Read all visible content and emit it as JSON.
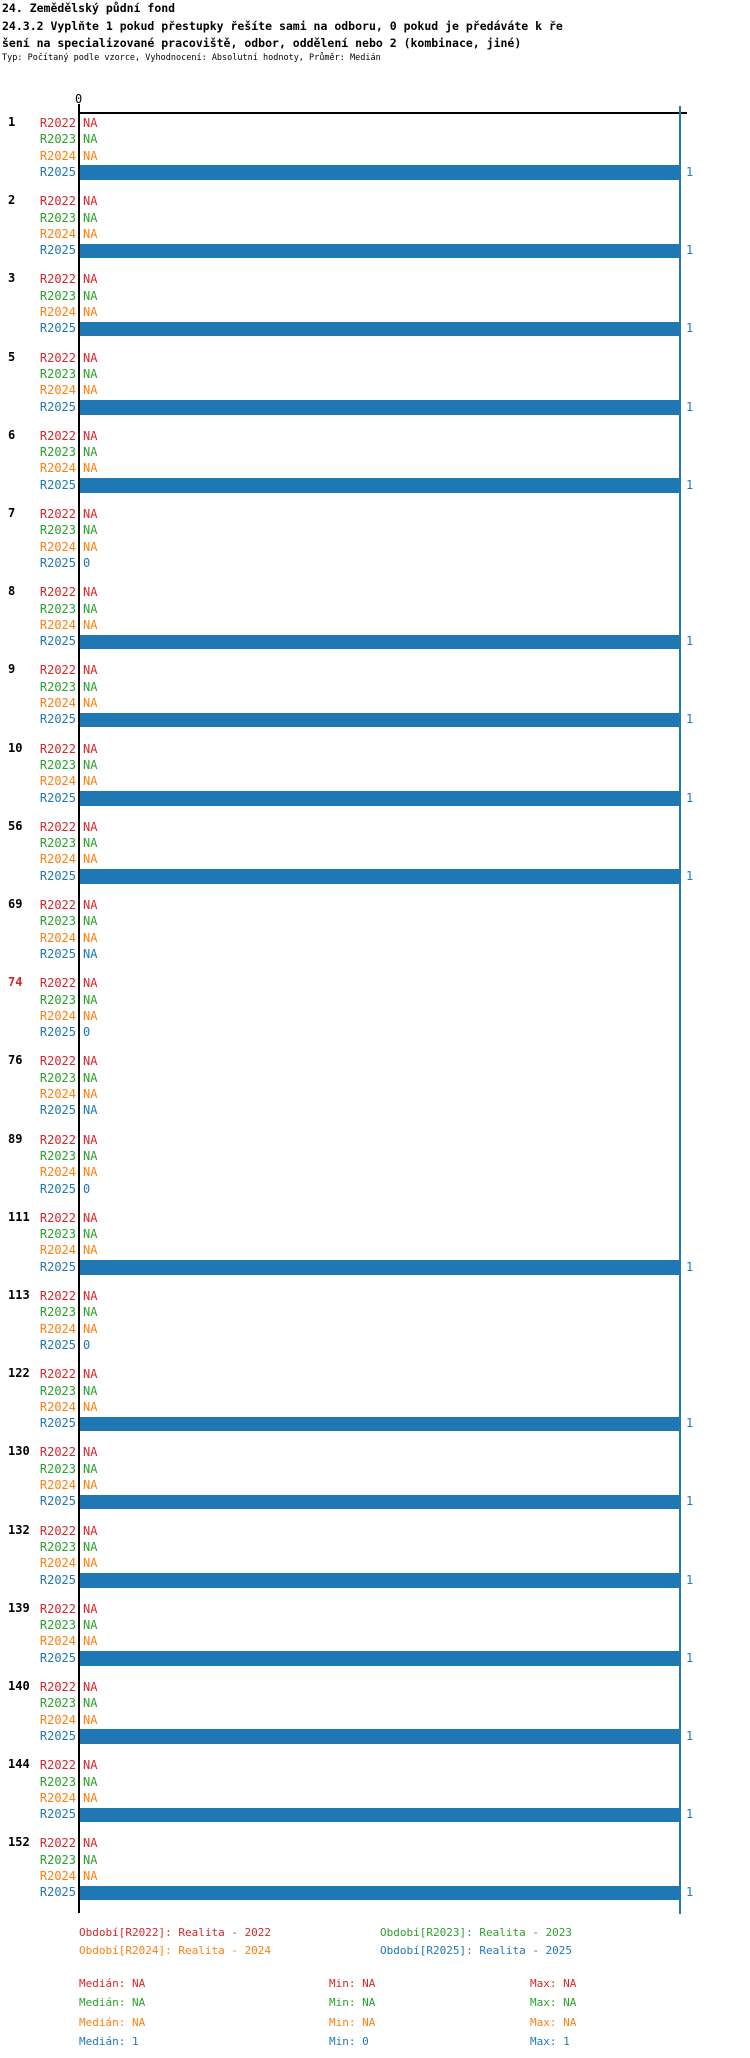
{
  "header": {
    "title": "24. Zemědělský půdní fond",
    "question_line1": "24.3.2 Vyplňte 1 pokud přestupky řešíte sami na odboru, 0 pokud je předáváte k ře",
    "question_line2": "šení na specializované pracoviště, odbor, oddělení nebo 2 (kombinace, jiné)",
    "meta": "Typ: Počítaný podle vzorce, Vyhodnocení: Absolutní hodnoty, Průměr: Medián"
  },
  "chart_data": {
    "type": "bar",
    "orientation": "horizontal",
    "title": "24.3.2 Vyplňte 1 pokud přestupky řešíte sami na odboru, 0 pokud je předáváte k řešení na specializované pracoviště, odbor, oddělení nebo 2 (kombinace, jiné)",
    "xlabel": "",
    "ylabel": "",
    "xlim": [
      0,
      1
    ],
    "x_tick_labels": [
      "0"
    ],
    "grid": "single vertical line at x=1 in R2025 blue",
    "bar_end_label": "1",
    "na_text": "NA",
    "categories": [
      "1",
      "2",
      "3",
      "5",
      "6",
      "7",
      "8",
      "9",
      "10",
      "56",
      "69",
      "74",
      "76",
      "89",
      "111",
      "113",
      "122",
      "130",
      "132",
      "139",
      "140",
      "144",
      "152"
    ],
    "highlighted_categories": [
      "74"
    ],
    "highlight_color": "#d62728",
    "series": [
      {
        "name": "R2022",
        "color": "#d62728",
        "values": [
          "NA",
          "NA",
          "NA",
          "NA",
          "NA",
          "NA",
          "NA",
          "NA",
          "NA",
          "NA",
          "NA",
          "NA",
          "NA",
          "NA",
          "NA",
          "NA",
          "NA",
          "NA",
          "NA",
          "NA",
          "NA",
          "NA",
          "NA"
        ]
      },
      {
        "name": "R2023",
        "color": "#2ca02c",
        "values": [
          "NA",
          "NA",
          "NA",
          "NA",
          "NA",
          "NA",
          "NA",
          "NA",
          "NA",
          "NA",
          "NA",
          "NA",
          "NA",
          "NA",
          "NA",
          "NA",
          "NA",
          "NA",
          "NA",
          "NA",
          "NA",
          "NA",
          "NA"
        ]
      },
      {
        "name": "R2024",
        "color": "#ff7f0e",
        "values": [
          "NA",
          "NA",
          "NA",
          "NA",
          "NA",
          "NA",
          "NA",
          "NA",
          "NA",
          "NA",
          "NA",
          "NA",
          "NA",
          "NA",
          "NA",
          "NA",
          "NA",
          "NA",
          "NA",
          "NA",
          "NA",
          "NA",
          "NA"
        ]
      },
      {
        "name": "R2025",
        "color": "#1f77b4",
        "values": [
          1,
          1,
          1,
          1,
          1,
          0,
          1,
          1,
          1,
          1,
          "NA",
          0,
          "NA",
          0,
          1,
          0,
          1,
          1,
          1,
          1,
          1,
          1,
          1
        ]
      }
    ],
    "legend": [
      {
        "series": "R2022",
        "label": "Období[R2022]: Realita - 2022",
        "color": "#d62728"
      },
      {
        "series": "R2023",
        "label": "Období[R2023]: Realita - 2023",
        "color": "#2ca02c"
      },
      {
        "series": "R2024",
        "label": "Období[R2024]: Realita - 2024",
        "color": "#ff7f0e"
      },
      {
        "series": "R2025",
        "label": "Období[R2025]: Realita - 2025",
        "color": "#1f77b4"
      }
    ],
    "stats_labels": {
      "median": "Medián",
      "min": "Min",
      "max": "Max"
    },
    "stats": [
      {
        "series": "R2022",
        "color": "#d62728",
        "median": "NA",
        "min": "NA",
        "max": "NA"
      },
      {
        "series": "R2023",
        "color": "#2ca02c",
        "median": "NA",
        "min": "NA",
        "max": "NA"
      },
      {
        "series": "R2024",
        "color": "#ff7f0e",
        "median": "NA",
        "min": "NA",
        "max": "NA"
      },
      {
        "series": "R2025",
        "color": "#1f77b4",
        "median": "1",
        "min": "0",
        "max": "1"
      }
    ]
  }
}
